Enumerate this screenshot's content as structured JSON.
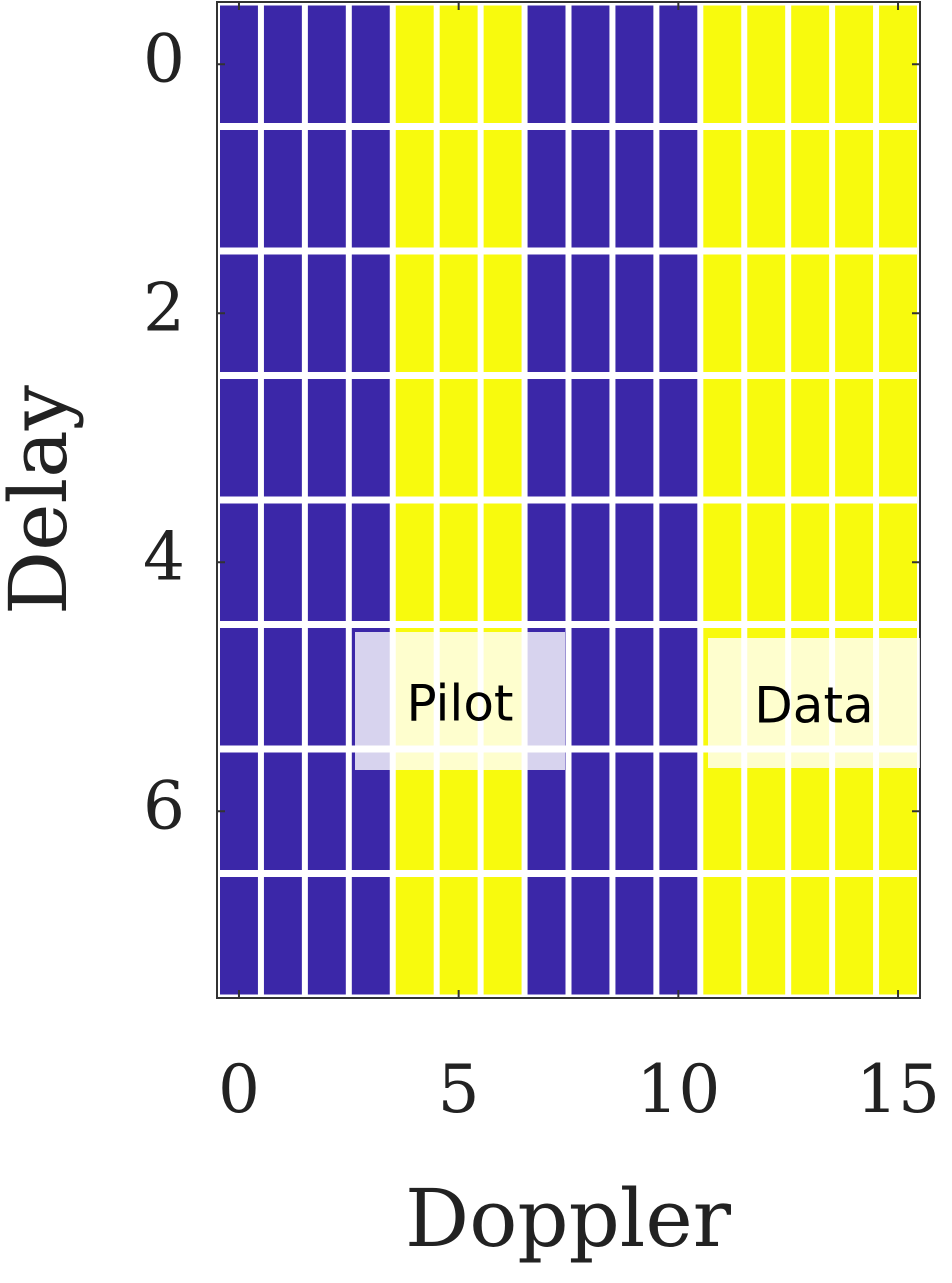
{
  "chart_data": {
    "type": "heatmap",
    "xlabel": "Doppler",
    "ylabel": "Delay",
    "xlim": [
      -0.5,
      15.5
    ],
    "ylim": [
      -0.5,
      7.5
    ],
    "y_reversed": true,
    "xticks": [
      0,
      5,
      10,
      15
    ],
    "yticks": [
      0,
      2,
      4,
      6
    ],
    "colors": [
      "#3b27a8",
      "#f8fa0d"
    ],
    "z": [
      [
        0,
        0,
        0,
        0,
        1,
        1,
        1,
        0,
        0,
        0,
        0,
        1,
        1,
        1,
        1,
        1
      ],
      [
        0,
        0,
        0,
        0,
        1,
        1,
        1,
        0,
        0,
        0,
        0,
        1,
        1,
        1,
        1,
        1
      ],
      [
        0,
        0,
        0,
        0,
        1,
        1,
        1,
        0,
        0,
        0,
        0,
        1,
        1,
        1,
        1,
        1
      ],
      [
        0,
        0,
        0,
        0,
        1,
        1,
        1,
        0,
        0,
        0,
        0,
        1,
        1,
        1,
        1,
        1
      ],
      [
        0,
        0,
        0,
        0,
        1,
        1,
        1,
        0,
        0,
        0,
        0,
        1,
        1,
        1,
        1,
        1
      ],
      [
        0,
        0,
        0,
        0,
        1,
        1,
        1,
        0,
        0,
        0,
        0,
        1,
        1,
        1,
        1,
        1
      ],
      [
        0,
        0,
        0,
        0,
        1,
        1,
        1,
        0,
        0,
        0,
        0,
        1,
        1,
        1,
        1,
        1
      ],
      [
        0,
        0,
        0,
        0,
        1,
        1,
        1,
        0,
        0,
        0,
        0,
        1,
        1,
        1,
        1,
        1
      ]
    ],
    "annotations": [
      {
        "text": "Pilot"
      },
      {
        "text": "Data"
      }
    ]
  }
}
